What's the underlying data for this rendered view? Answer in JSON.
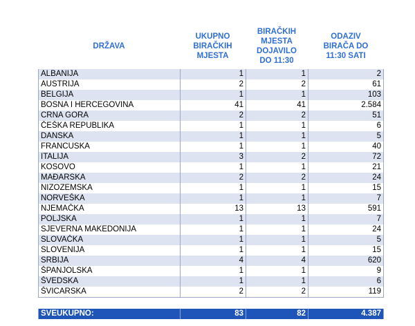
{
  "header": {
    "drzava": "DRŽAVA",
    "ukupno": "UKUPNO\nBIRAČKIH\nMJESTA",
    "dojavilo": "BIRAČKIH\nMJESTA\nDOJAVILO\nDO 11:30",
    "odaziv": "ODAZIV\nBIRAČA DO\n11:30 SATI"
  },
  "rows": [
    {
      "drzava": "ALBANIJA",
      "ukupno": "1",
      "dojavilo": "1",
      "odaziv": "2"
    },
    {
      "drzava": "AUSTRIJA",
      "ukupno": "2",
      "dojavilo": "2",
      "odaziv": "61"
    },
    {
      "drzava": "BELGIJA",
      "ukupno": "1",
      "dojavilo": "1",
      "odaziv": "103"
    },
    {
      "drzava": "BOSNA I HERCEGOVINA",
      "ukupno": "41",
      "dojavilo": "41",
      "odaziv": "2.584"
    },
    {
      "drzava": "CRNA GORA",
      "ukupno": "2",
      "dojavilo": "2",
      "odaziv": "51"
    },
    {
      "drzava": "ČEŠKA REPUBLIKA",
      "ukupno": "1",
      "dojavilo": "1",
      "odaziv": "6"
    },
    {
      "drzava": "DANSKA",
      "ukupno": "1",
      "dojavilo": "1",
      "odaziv": "5"
    },
    {
      "drzava": "FRANCUSKA",
      "ukupno": "1",
      "dojavilo": "1",
      "odaziv": "40"
    },
    {
      "drzava": "ITALIJA",
      "ukupno": "3",
      "dojavilo": "2",
      "odaziv": "72"
    },
    {
      "drzava": "KOSOVO",
      "ukupno": "1",
      "dojavilo": "1",
      "odaziv": "21"
    },
    {
      "drzava": "MAĐARSKA",
      "ukupno": "2",
      "dojavilo": "2",
      "odaziv": "24"
    },
    {
      "drzava": "NIZOZEMSKA",
      "ukupno": "1",
      "dojavilo": "1",
      "odaziv": "15"
    },
    {
      "drzava": "NORVEŠKA",
      "ukupno": "1",
      "dojavilo": "1",
      "odaziv": "7"
    },
    {
      "drzava": "NJEMAČKA",
      "ukupno": "13",
      "dojavilo": "13",
      "odaziv": "591"
    },
    {
      "drzava": "POLJSKA",
      "ukupno": "1",
      "dojavilo": "1",
      "odaziv": "7"
    },
    {
      "drzava": "SJEVERNA MAKEDONIJA",
      "ukupno": "1",
      "dojavilo": "1",
      "odaziv": "24"
    },
    {
      "drzava": "SLOVAČKA",
      "ukupno": "1",
      "dojavilo": "1",
      "odaziv": "5"
    },
    {
      "drzava": "SLOVENIJA",
      "ukupno": "1",
      "dojavilo": "1",
      "odaziv": "15"
    },
    {
      "drzava": "SRBIJA",
      "ukupno": "4",
      "dojavilo": "4",
      "odaziv": "620"
    },
    {
      "drzava": "ŠPANJOLSKA",
      "ukupno": "1",
      "dojavilo": "1",
      "odaziv": "9"
    },
    {
      "drzava": "ŠVEDSKA",
      "ukupno": "1",
      "dojavilo": "1",
      "odaziv": "6"
    },
    {
      "drzava": "ŠVICARSKA",
      "ukupno": "2",
      "dojavilo": "2",
      "odaziv": "119"
    }
  ],
  "total": {
    "label": "SVEUKUPNO:",
    "ukupno": "83",
    "dojavilo": "82",
    "odaziv": "4.387"
  },
  "colors": {
    "header_text": "#2f6fd4",
    "row_band": "#dde3f1",
    "total_bg": "#1f55b9"
  }
}
